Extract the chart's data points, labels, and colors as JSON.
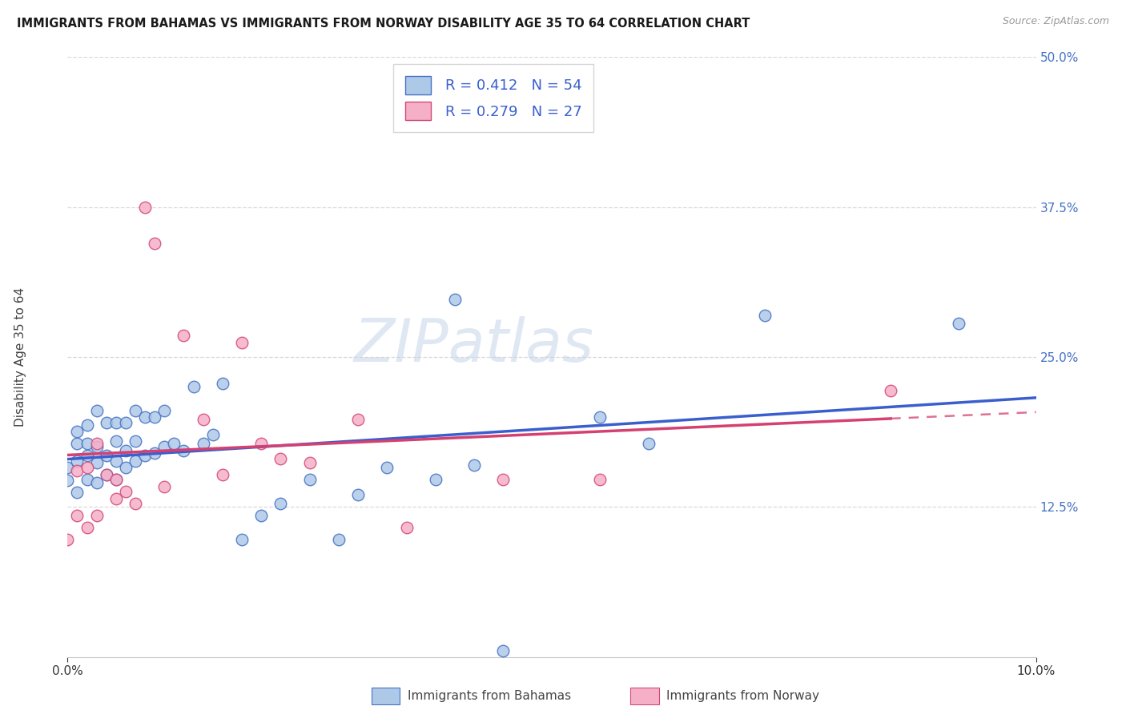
{
  "title": "IMMIGRANTS FROM BAHAMAS VS IMMIGRANTS FROM NORWAY DISABILITY AGE 35 TO 64 CORRELATION CHART",
  "source": "Source: ZipAtlas.com",
  "ylabel_label": "Disability Age 35 to 64",
  "watermark_text": "ZIPatlas",
  "r_bahamas": 0.412,
  "n_bahamas": 54,
  "r_norway": 0.279,
  "n_norway": 27,
  "xlim": [
    0.0,
    0.1
  ],
  "ylim": [
    0.0,
    0.5
  ],
  "color_bahamas_fill": "#aec8e8",
  "color_norway_fill": "#f5b0c8",
  "color_bahamas_edge": "#4472c4",
  "color_norway_edge": "#d44878",
  "line_color_bahamas": "#3a5fcd",
  "line_color_norway": "#d44070",
  "background_color": "#ffffff",
  "grid_color": "#d8d8d8",
  "ytick_color": "#4472c4",
  "scatter_bahamas_x": [
    0.0,
    0.0,
    0.001,
    0.001,
    0.001,
    0.001,
    0.002,
    0.002,
    0.002,
    0.002,
    0.003,
    0.003,
    0.003,
    0.003,
    0.004,
    0.004,
    0.004,
    0.005,
    0.005,
    0.005,
    0.005,
    0.006,
    0.006,
    0.006,
    0.007,
    0.007,
    0.007,
    0.008,
    0.008,
    0.009,
    0.009,
    0.01,
    0.01,
    0.011,
    0.012,
    0.013,
    0.014,
    0.015,
    0.016,
    0.018,
    0.02,
    0.022,
    0.025,
    0.028,
    0.03,
    0.033,
    0.038,
    0.04,
    0.042,
    0.045,
    0.055,
    0.06,
    0.072,
    0.092
  ],
  "scatter_bahamas_y": [
    0.147,
    0.158,
    0.137,
    0.163,
    0.178,
    0.188,
    0.148,
    0.168,
    0.178,
    0.193,
    0.145,
    0.162,
    0.175,
    0.205,
    0.152,
    0.168,
    0.195,
    0.148,
    0.163,
    0.18,
    0.195,
    0.158,
    0.172,
    0.195,
    0.163,
    0.18,
    0.205,
    0.168,
    0.2,
    0.17,
    0.2,
    0.175,
    0.205,
    0.178,
    0.172,
    0.225,
    0.178,
    0.185,
    0.228,
    0.098,
    0.118,
    0.128,
    0.148,
    0.098,
    0.135,
    0.158,
    0.148,
    0.298,
    0.16,
    0.005,
    0.2,
    0.178,
    0.285,
    0.278
  ],
  "scatter_norway_x": [
    0.0,
    0.001,
    0.001,
    0.002,
    0.002,
    0.003,
    0.003,
    0.004,
    0.005,
    0.005,
    0.006,
    0.007,
    0.008,
    0.009,
    0.01,
    0.012,
    0.014,
    0.016,
    0.018,
    0.02,
    0.022,
    0.025,
    0.03,
    0.035,
    0.045,
    0.055,
    0.085
  ],
  "scatter_norway_y": [
    0.098,
    0.118,
    0.155,
    0.108,
    0.158,
    0.118,
    0.178,
    0.152,
    0.132,
    0.148,
    0.138,
    0.128,
    0.375,
    0.345,
    0.142,
    0.268,
    0.198,
    0.152,
    0.262,
    0.178,
    0.165,
    0.162,
    0.198,
    0.108,
    0.148,
    0.148,
    0.222
  ]
}
